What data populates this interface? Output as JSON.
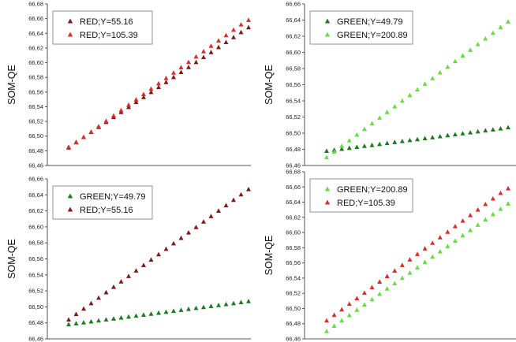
{
  "chart_data": [
    {
      "type": "scatter",
      "ylabel": "SOM-QE",
      "xlabel": "",
      "ylim": [
        66.46,
        66.68
      ],
      "yticks": [
        "66,46",
        "66,48",
        "66,50",
        "66,52",
        "66,54",
        "66,56",
        "66,58",
        "66,60",
        "66,62",
        "66,64",
        "66,66",
        "66,68"
      ],
      "grid": false,
      "legend": "top-left",
      "series": [
        {
          "name": "RED;Y=55.16",
          "color": "#7f1a1a",
          "values": [
            66.485,
            66.4918,
            66.4986,
            66.5054,
            66.5122,
            66.519,
            66.5258,
            66.5326,
            66.5394,
            66.5462,
            66.553,
            66.5598,
            66.5666,
            66.5734,
            66.5802,
            66.587,
            66.5938,
            66.6006,
            66.6074,
            66.6142,
            66.621,
            66.6278,
            66.6346,
            66.6414,
            66.648
          ]
        },
        {
          "name": "RED;Y=105.39",
          "color": "#dd2a2a",
          "values": [
            66.484,
            66.4913,
            66.4986,
            66.5059,
            66.5132,
            66.5205,
            66.5278,
            66.5351,
            66.5424,
            66.5497,
            66.557,
            66.5643,
            66.5716,
            66.5789,
            66.5862,
            66.5935,
            66.6008,
            66.6081,
            66.6154,
            66.6227,
            66.63,
            66.6373,
            66.6446,
            66.6519,
            66.658
          ]
        }
      ]
    },
    {
      "type": "scatter",
      "ylabel": "SOM-QE",
      "xlabel": "",
      "ylim": [
        66.46,
        66.66
      ],
      "yticks": [
        "66,46",
        "66,48",
        "66,50",
        "66,52",
        "66,54",
        "66,56",
        "66,58",
        "66,60",
        "66,62",
        "66,64",
        "66,66"
      ],
      "grid": false,
      "legend": "top-left",
      "series": [
        {
          "name": "GREEN;Y=49.79",
          "color": "#1e7a1e",
          "values": [
            66.478,
            66.4792,
            66.4804,
            66.4816,
            66.4828,
            66.484,
            66.4852,
            66.4864,
            66.4876,
            66.4888,
            66.49,
            66.4912,
            66.4924,
            66.4936,
            66.4948,
            66.496,
            66.4972,
            66.4984,
            66.4996,
            66.5008,
            66.502,
            66.5032,
            66.5044,
            66.5056,
            66.507
          ]
        },
        {
          "name": "GREEN;Y=200.89",
          "color": "#66dd44",
          "values": [
            66.47,
            66.477,
            66.484,
            66.491,
            66.498,
            66.505,
            66.512,
            66.519,
            66.526,
            66.533,
            66.54,
            66.547,
            66.554,
            66.561,
            66.568,
            66.575,
            66.582,
            66.589,
            66.596,
            66.603,
            66.61,
            66.617,
            66.624,
            66.631,
            66.638
          ]
        }
      ]
    },
    {
      "type": "scatter",
      "ylabel": "SOM-QE",
      "xlabel": "",
      "ylim": [
        66.46,
        66.66
      ],
      "yticks": [
        "66,46",
        "66,48",
        "66,50",
        "66,52",
        "66,54",
        "66,56",
        "66,58",
        "66,60",
        "66,62",
        "66,64",
        "66,66"
      ],
      "grid": false,
      "legend": "top-left",
      "series": [
        {
          "name": "GREEN;Y=49.79",
          "color": "#1e7a1e",
          "values": [
            66.478,
            66.4792,
            66.4804,
            66.4816,
            66.4828,
            66.484,
            66.4852,
            66.4864,
            66.4876,
            66.4888,
            66.49,
            66.4912,
            66.4924,
            66.4936,
            66.4948,
            66.496,
            66.4972,
            66.4984,
            66.4996,
            66.5008,
            66.502,
            66.5032,
            66.5044,
            66.5056,
            66.507
          ]
        },
        {
          "name": "RED;Y=55.16",
          "color": "#7f1a1a",
          "values": [
            66.484,
            66.4908,
            66.4976,
            66.5044,
            66.5112,
            66.518,
            66.5248,
            66.5316,
            66.5384,
            66.5452,
            66.552,
            66.5588,
            66.5656,
            66.5724,
            66.5792,
            66.586,
            66.5928,
            66.5996,
            66.6064,
            66.6132,
            66.62,
            66.6268,
            66.6336,
            66.6404,
            66.647
          ]
        }
      ]
    },
    {
      "type": "scatter",
      "ylabel": "SOM-QE",
      "xlabel": "",
      "ylim": [
        66.46,
        66.68
      ],
      "yticks": [
        "66,46",
        "66,48",
        "66,50",
        "66,52",
        "66,54",
        "66,56",
        "66,58",
        "66,60",
        "66,62",
        "66,64",
        "66,66",
        "66,68"
      ],
      "grid": false,
      "legend": "top-left",
      "series": [
        {
          "name": "GREEN;Y=200.89",
          "color": "#66dd44",
          "values": [
            66.47,
            66.477,
            66.484,
            66.491,
            66.498,
            66.505,
            66.512,
            66.519,
            66.526,
            66.533,
            66.54,
            66.547,
            66.554,
            66.561,
            66.568,
            66.575,
            66.582,
            66.589,
            66.596,
            66.603,
            66.61,
            66.617,
            66.624,
            66.631,
            66.638
          ]
        },
        {
          "name": "RED;Y=105.39",
          "color": "#dd2a2a",
          "values": [
            66.484,
            66.4913,
            66.4986,
            66.5059,
            66.5132,
            66.5205,
            66.5278,
            66.5351,
            66.5424,
            66.5497,
            66.557,
            66.5643,
            66.5716,
            66.5789,
            66.5862,
            66.5935,
            66.6008,
            66.6081,
            66.6154,
            66.6227,
            66.63,
            66.6373,
            66.6446,
            66.6519,
            66.658
          ]
        }
      ]
    }
  ]
}
